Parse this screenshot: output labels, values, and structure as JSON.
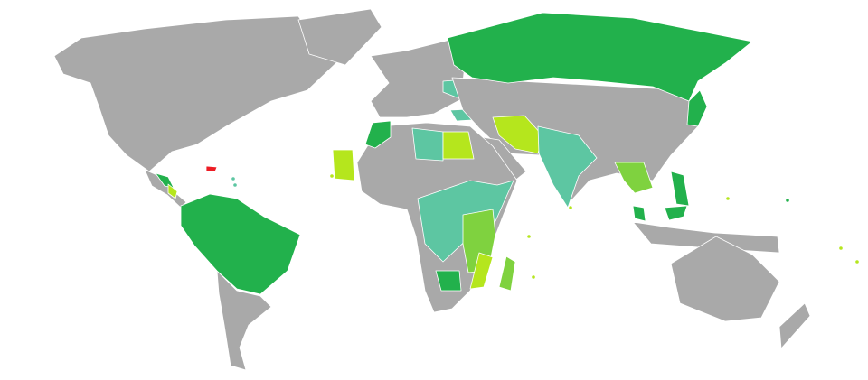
{
  "map": {
    "colors": {
      "land_default": "#a9a9a9",
      "dark_green": "#22b14c",
      "teal": "#5dc6a2",
      "mid_green": "#7fd23f",
      "lime": "#b5e61d",
      "red": "#ed1c24",
      "background": "#ffffff"
    }
  }
}
